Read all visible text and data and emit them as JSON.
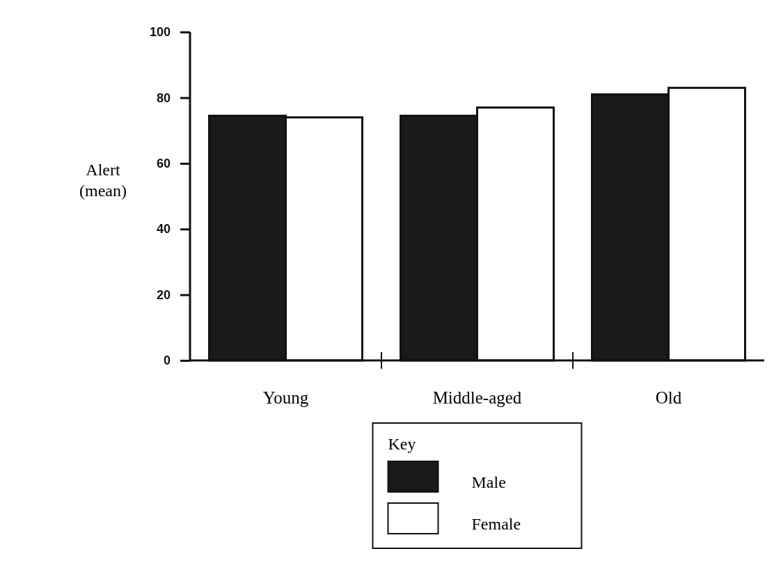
{
  "chart_data": {
    "type": "bar",
    "ylabel": "Alert\n(mean)",
    "legend_title": "Key",
    "categories": [
      "Young",
      "Middle-aged",
      "Old"
    ],
    "series": [
      {
        "name": "Male",
        "color": "#1a1a1a",
        "values": [
          74.5,
          74.5,
          81
        ]
      },
      {
        "name": "Female",
        "color": "#ffffff",
        "values": [
          74,
          77,
          83
        ]
      }
    ],
    "ylim": [
      0,
      100
    ],
    "yticks": [
      0,
      20,
      40,
      60,
      80,
      100
    ],
    "legend": "bottom",
    "grid": false
  }
}
